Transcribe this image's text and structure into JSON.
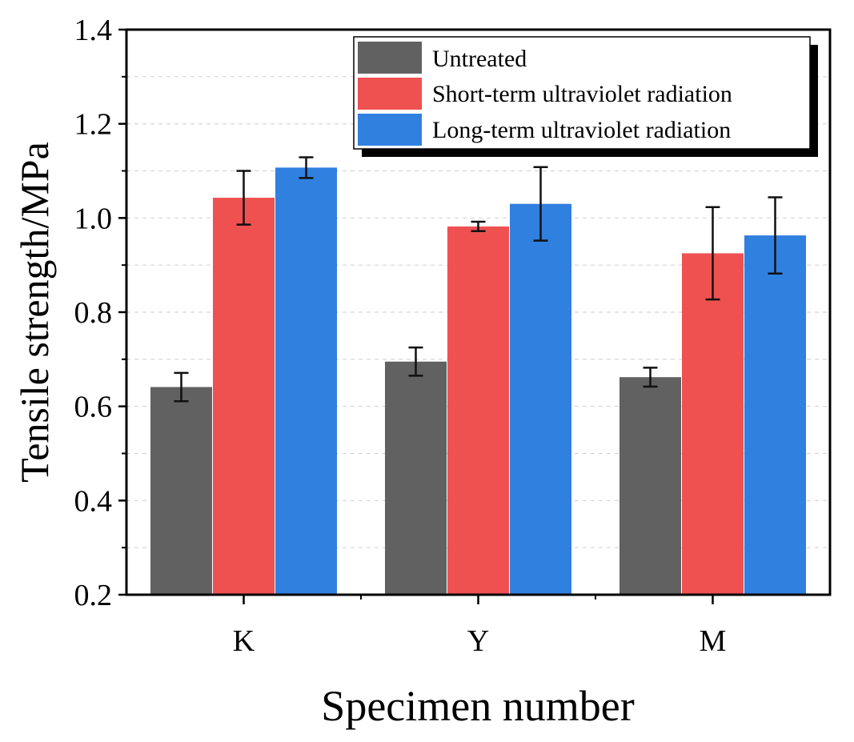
{
  "chart_data": {
    "type": "bar",
    "title": "",
    "xlabel": "Specimen number",
    "ylabel": "Tensile strength/MPa",
    "categories": [
      "K",
      "Y",
      "M"
    ],
    "ylim": [
      0.2,
      1.4
    ],
    "yticks": [
      "0.2",
      "0.4",
      "0.6",
      "0.8",
      "1.0",
      "1.2",
      "1.4"
    ],
    "grid": true,
    "legend_position": "top-right",
    "series": [
      {
        "name": "Untreated",
        "color": "#616161",
        "values": [
          0.641,
          0.695,
          0.662
        ],
        "errors": [
          0.03,
          0.03,
          0.02
        ]
      },
      {
        "name": "Short-term ultraviolet radiation",
        "color": "#ef5151",
        "values": [
          1.043,
          0.982,
          0.925
        ],
        "errors": [
          0.057,
          0.01,
          0.098
        ]
      },
      {
        "name": "Long-term ultraviolet radiation",
        "color": "#3080e0",
        "values": [
          1.107,
          1.03,
          0.963
        ],
        "errors": [
          0.022,
          0.078,
          0.081
        ]
      }
    ]
  }
}
